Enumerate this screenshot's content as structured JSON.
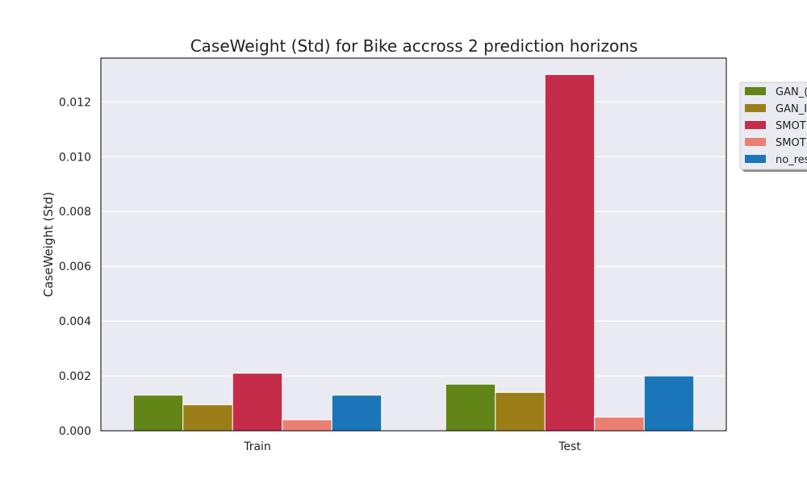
{
  "chart_data": {
    "type": "bar",
    "title": "CaseWeight (Std) for Bike accross 2 prediction horizons",
    "xlabel": "",
    "ylabel": "CaseWeight (Std)",
    "categories": [
      "Train",
      "Test"
    ],
    "ylim": [
      0,
      0.0136
    ],
    "yticks": [
      "0.000",
      "0.002",
      "0.004",
      "0.006",
      "0.008",
      "0.010",
      "0.012"
    ],
    "grid": true,
    "legend_position": "top-right",
    "legend_entries": [
      "GAN_(",
      "GAN_I",
      "SMOT",
      "SMOT",
      "no_res"
    ],
    "series": [
      {
        "name": "GAN_(",
        "color": "#618516",
        "values": [
          0.0013,
          0.0017
        ]
      },
      {
        "name": "GAN_I",
        "color": "#9c7e18",
        "values": [
          0.00095,
          0.0014
        ]
      },
      {
        "name": "SMOT",
        "color": "#c42c4a",
        "values": [
          0.0021,
          0.013
        ]
      },
      {
        "name": "SMOT",
        "color": "#eb8072",
        "values": [
          0.0004,
          0.0005
        ]
      },
      {
        "name": "no_res",
        "color": "#1a76b8",
        "values": [
          0.0013,
          0.002
        ]
      }
    ]
  }
}
